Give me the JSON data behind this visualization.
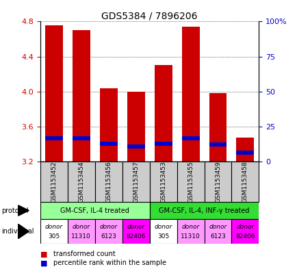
{
  "title": "GDS5384 / 7896206",
  "samples": [
    "GSM1153452",
    "GSM1153454",
    "GSM1153456",
    "GSM1153457",
    "GSM1153453",
    "GSM1153455",
    "GSM1153459",
    "GSM1153458"
  ],
  "red_values": [
    4.76,
    4.7,
    4.04,
    4.0,
    4.3,
    4.74,
    3.98,
    3.47
  ],
  "blue_values": [
    3.44,
    3.44,
    3.38,
    3.35,
    3.38,
    3.44,
    3.37,
    3.28
  ],
  "ylim_left": [
    3.2,
    4.8
  ],
  "ylim_right": [
    0,
    100
  ],
  "yticks_left": [
    3.2,
    3.6,
    4.0,
    4.4,
    4.8
  ],
  "yticks_right": [
    0,
    25,
    50,
    75,
    100
  ],
  "ytick_labels_right": [
    "0",
    "25",
    "50",
    "75",
    "100%"
  ],
  "bar_width": 0.65,
  "blue_bar_height": 0.045,
  "red_color": "#cc0000",
  "blue_color": "#0000cc",
  "grid_color": "#000000",
  "sample_box_color": "#cccccc",
  "protocol_groups": [
    {
      "label": "GM-CSF, IL-4 treated",
      "start": 0,
      "end": 3,
      "color": "#99ff99"
    },
    {
      "label": "GM-CSF, IL-4, INF-γ treated",
      "start": 4,
      "end": 7,
      "color": "#33dd33"
    }
  ],
  "indiv_colors": [
    "#ffffff",
    "#ff99ff",
    "#ff99ff",
    "#ff00ff",
    "#ffffff",
    "#ff99ff",
    "#ff99ff",
    "#ff00ff"
  ],
  "indiv_texts_top": [
    "donor",
    "donor",
    "donor",
    "donor",
    "donor",
    "donor",
    "donor",
    "donor"
  ],
  "indiv_texts_bot": [
    "305",
    "11310",
    "6123",
    "82406",
    "305",
    "11310",
    "6123",
    "82406"
  ],
  "bg_color": "#ffffff",
  "tick_color_left": "#cc0000",
  "tick_color_right": "#0000cc",
  "tick_fontsize": 8,
  "title_fontsize": 10,
  "label_fontsize": 7,
  "sample_fontsize": 6.5,
  "indiv_fontsize": 6.5,
  "legend_fontsize": 7
}
